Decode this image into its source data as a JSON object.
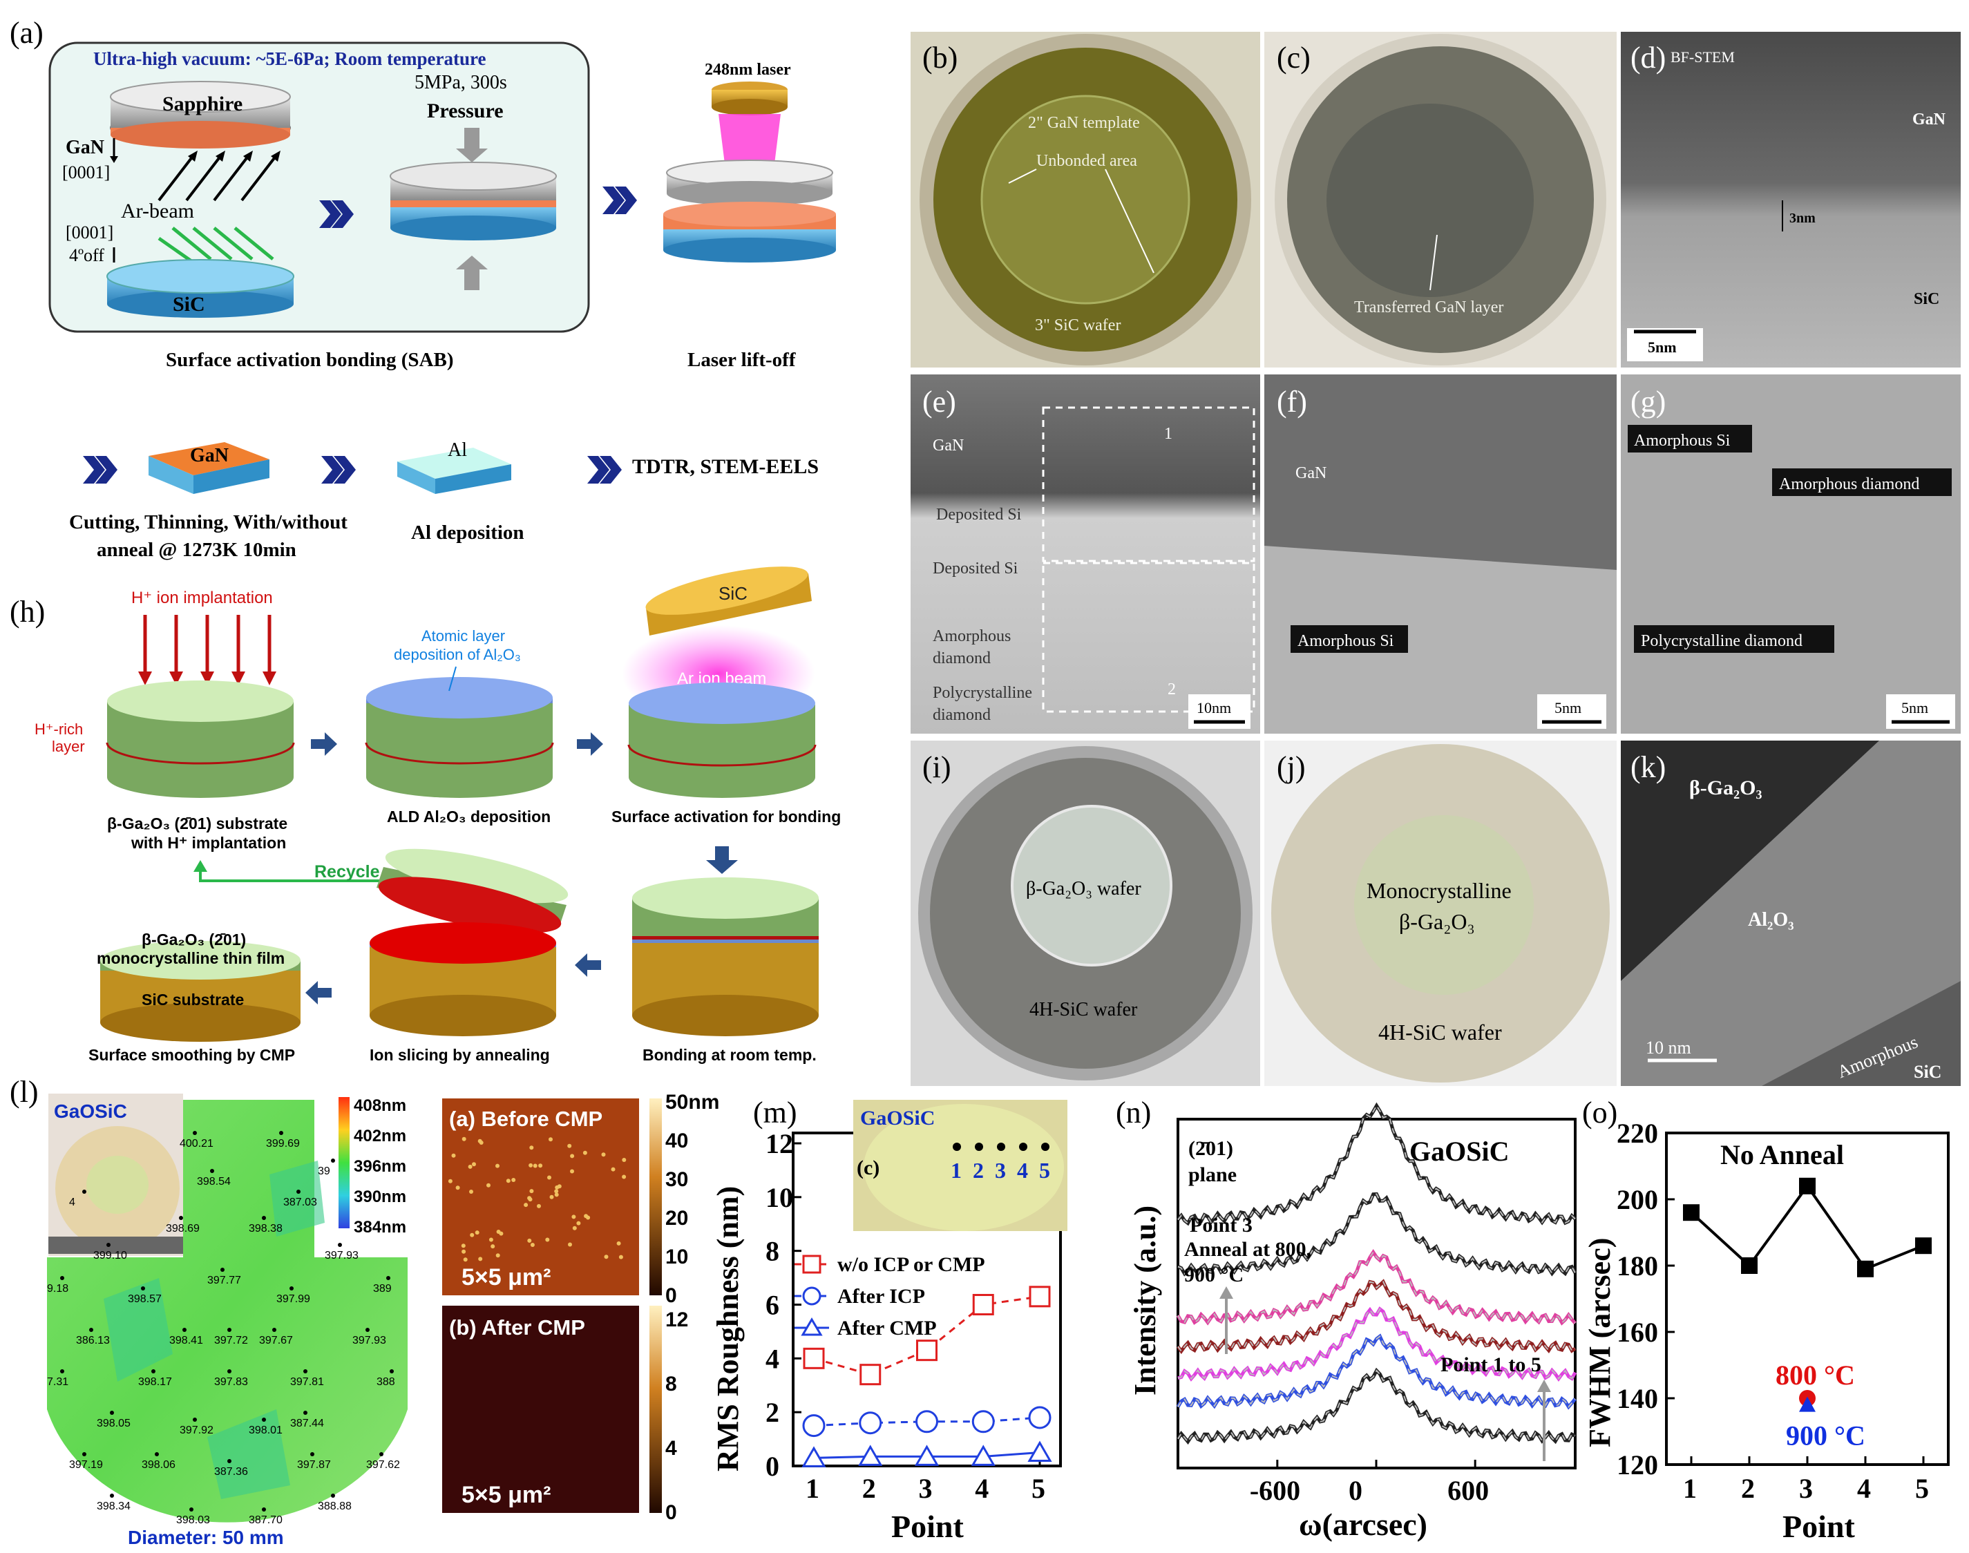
{
  "panel_labels": {
    "a": "(a)",
    "b": "(b)",
    "c": "(c)",
    "d": "(d)",
    "e": "(e)",
    "f": "(f)",
    "g": "(g)",
    "h": "(h)",
    "i": "(i)",
    "j": "(j)",
    "k": "(k)",
    "l": "(l)",
    "m": "(m)",
    "n": "(n)",
    "o": "(o)"
  },
  "panel_a": {
    "header": "Ultra-high vacuum: ~5E-6Pa; Room temperature",
    "sapphire": "Sapphire",
    "gan": "GaN",
    "dir1": "[0001]",
    "arbeam": "Ar-beam",
    "dir2": "[0001]",
    "off": "4ºoff",
    "sic": "SiC",
    "press": "5MPa, 300s",
    "pressure": "Pressure",
    "laser": "248nm laser",
    "sab": "Surface activation bonding (SAB)",
    "llo": "Laser lift-off",
    "gan2": "GaN",
    "al": "Al",
    "tdtr": "TDTR, STEM-EELS",
    "cut1": "Cutting, Thinning, With/without",
    "cut2": "anneal @ 1273K 10min",
    "aldep": "Al deposition"
  },
  "panel_b": {
    "t1": "2\" GaN template",
    "t2": "Unbonded area",
    "t3": "3\" SiC wafer"
  },
  "panel_c": {
    "t1": "Transferred GaN layer"
  },
  "panel_d": {
    "t1": "BF-STEM",
    "t2": "GaN",
    "t3": "3nm",
    "t4": "SiC",
    "scale": "5nm"
  },
  "panel_e": {
    "t1": "GaN",
    "t2": "Deposited Si",
    "t3": "Deposited Si",
    "t4": "Amorphous",
    "t5": "diamond",
    "t6": "Polycrystalline",
    "t7": "diamond",
    "b1": "1",
    "b2": "2",
    "scale": "10nm"
  },
  "panel_f": {
    "t1": "GaN",
    "t2": "Amorphous Si",
    "scale": "5nm"
  },
  "panel_g": {
    "t1": "Amorphous Si",
    "t2": "Amorphous diamond",
    "t3": "Polycrystalline diamond",
    "scale": "5nm"
  },
  "panel_h": {
    "himpl": "H⁺ ion implantation",
    "hrich1": "H⁺-rich",
    "hrich2": "layer",
    "ald1": "Atomic layer",
    "ald2": "deposition of Al₂O₃",
    "sic": "SiC",
    "arion": "Ar ion beam",
    "c1a": "β-Ga₂O₃ (2̄01) substrate",
    "c1b": "with H⁺ implantation",
    "c2": "ALD Al₂O₃ deposition",
    "c3": "Surface activation for bonding",
    "recycle": "Recycle",
    "c4a": "β-Ga₂O₃ (2̄01)",
    "c4b": "monocrystalline thin film",
    "c4c": "SiC substrate",
    "c5": "Surface smoothing by CMP",
    "c6": "Ion slicing by annealing",
    "c7": "Bonding at room temp."
  },
  "panel_i": {
    "t1": "β-Ga₂O₃ wafer",
    "t2": "4H-SiC wafer"
  },
  "panel_j": {
    "t1": "Monocrystalline",
    "t2": "β-Ga₂O₃",
    "t3": "4H-SiC wafer"
  },
  "panel_k": {
    "t1": "β-Ga₂O₃",
    "t2": "Al₂O₃",
    "t3": "Amorphous",
    "t4": "SiC",
    "scale": "10 nm"
  },
  "panel_l": {
    "title": "GaOSiC",
    "diameter": "Diameter: 50 mm",
    "colorbar": [
      "408nm",
      "402nm",
      "396nm",
      "390nm",
      "384nm"
    ],
    "values": [
      "400.21",
      "399.69",
      "39",
      "398.54",
      "387.03",
      "4",
      "398.69",
      "398.38",
      "399.10",
      "397.93",
      "397.77",
      "9.18",
      "398.57",
      "397.99",
      "389",
      "386.13",
      "398.41",
      "397.72",
      "397.67",
      "397.93",
      "7.31",
      "398.17",
      "397.83",
      "397.81",
      "388",
      "398.05",
      "387.44",
      "397.92",
      "398.01",
      "397.19",
      "398.06",
      "397.87",
      "397.62",
      "387.36",
      "398.34",
      "398.03",
      "387.70",
      "388.88"
    ]
  },
  "afm": {
    "before": "(a) Before CMP",
    "after": "(b) After CMP",
    "area": "5×5 μm²",
    "ticks_top": [
      "50nm",
      "40",
      "30",
      "20",
      "10",
      "0"
    ],
    "ticks_bot": [
      "12",
      "8",
      "4",
      "0"
    ]
  },
  "chart_data": [
    {
      "type": "line",
      "title": "(m)",
      "inset": "GaOSiC",
      "inset_label": "(c)",
      "inset_points": [
        "1",
        "2",
        "3",
        "4",
        "5"
      ],
      "xlabel": "Point",
      "ylabel": "RMS Roughness (nm)",
      "ylim": [
        0,
        12
      ],
      "x": [
        1,
        2,
        3,
        4,
        5
      ],
      "yticks": [
        "0",
        "2",
        "4",
        "6",
        "8",
        "10",
        "12"
      ],
      "series": [
        {
          "name": "w/o ICP or CMP",
          "values": [
            4.0,
            3.4,
            4.3,
            6.0,
            6.3
          ],
          "color": "#e02020"
        },
        {
          "name": "After ICP",
          "values": [
            1.5,
            1.6,
            1.65,
            1.65,
            1.8
          ],
          "color": "#2040e0"
        },
        {
          "name": "After CMP",
          "values": [
            0.3,
            0.35,
            0.35,
            0.35,
            0.5
          ],
          "color": "#2040e0"
        }
      ]
    },
    {
      "type": "line",
      "title": "(n)",
      "label": "GaOSiC",
      "plane1": "(2̄01)",
      "plane2": "plane",
      "ann1": "Point 3",
      "ann2": "Anneal at 800,",
      "ann3": "900 °C",
      "ann4": "Point 1 to 5",
      "xlabel": "ω(arcsec)",
      "ylabel": "Intensity (a.u.)",
      "xticks": [
        "-600",
        "0",
        "600"
      ],
      "curves": [
        {
          "offset": 0.7,
          "color": "#222222"
        },
        {
          "offset": 0.56,
          "color": "#222222"
        },
        {
          "offset": 0.42,
          "color": "#e040a0"
        },
        {
          "offset": 0.34,
          "color": "#902020"
        },
        {
          "offset": 0.26,
          "color": "#e040e0"
        },
        {
          "offset": 0.18,
          "color": "#3050e0"
        },
        {
          "offset": 0.08,
          "color": "#222222"
        }
      ]
    },
    {
      "type": "line",
      "title": "(o)",
      "label": "No Anneal",
      "xlabel": "Point",
      "ylabel": "FWHM (arcsec)",
      "ylim": [
        120,
        220
      ],
      "yticks": [
        "120",
        "140",
        "160",
        "180",
        "200",
        "220"
      ],
      "x": [
        1,
        2,
        3,
        4,
        5
      ],
      "values": [
        196,
        180,
        204,
        179,
        186
      ],
      "anneal": [
        {
          "label": "800 °C",
          "value": 140,
          "color": "#e01010"
        },
        {
          "label": "900 °C",
          "value": 138,
          "color": "#1030e0"
        }
      ]
    }
  ]
}
